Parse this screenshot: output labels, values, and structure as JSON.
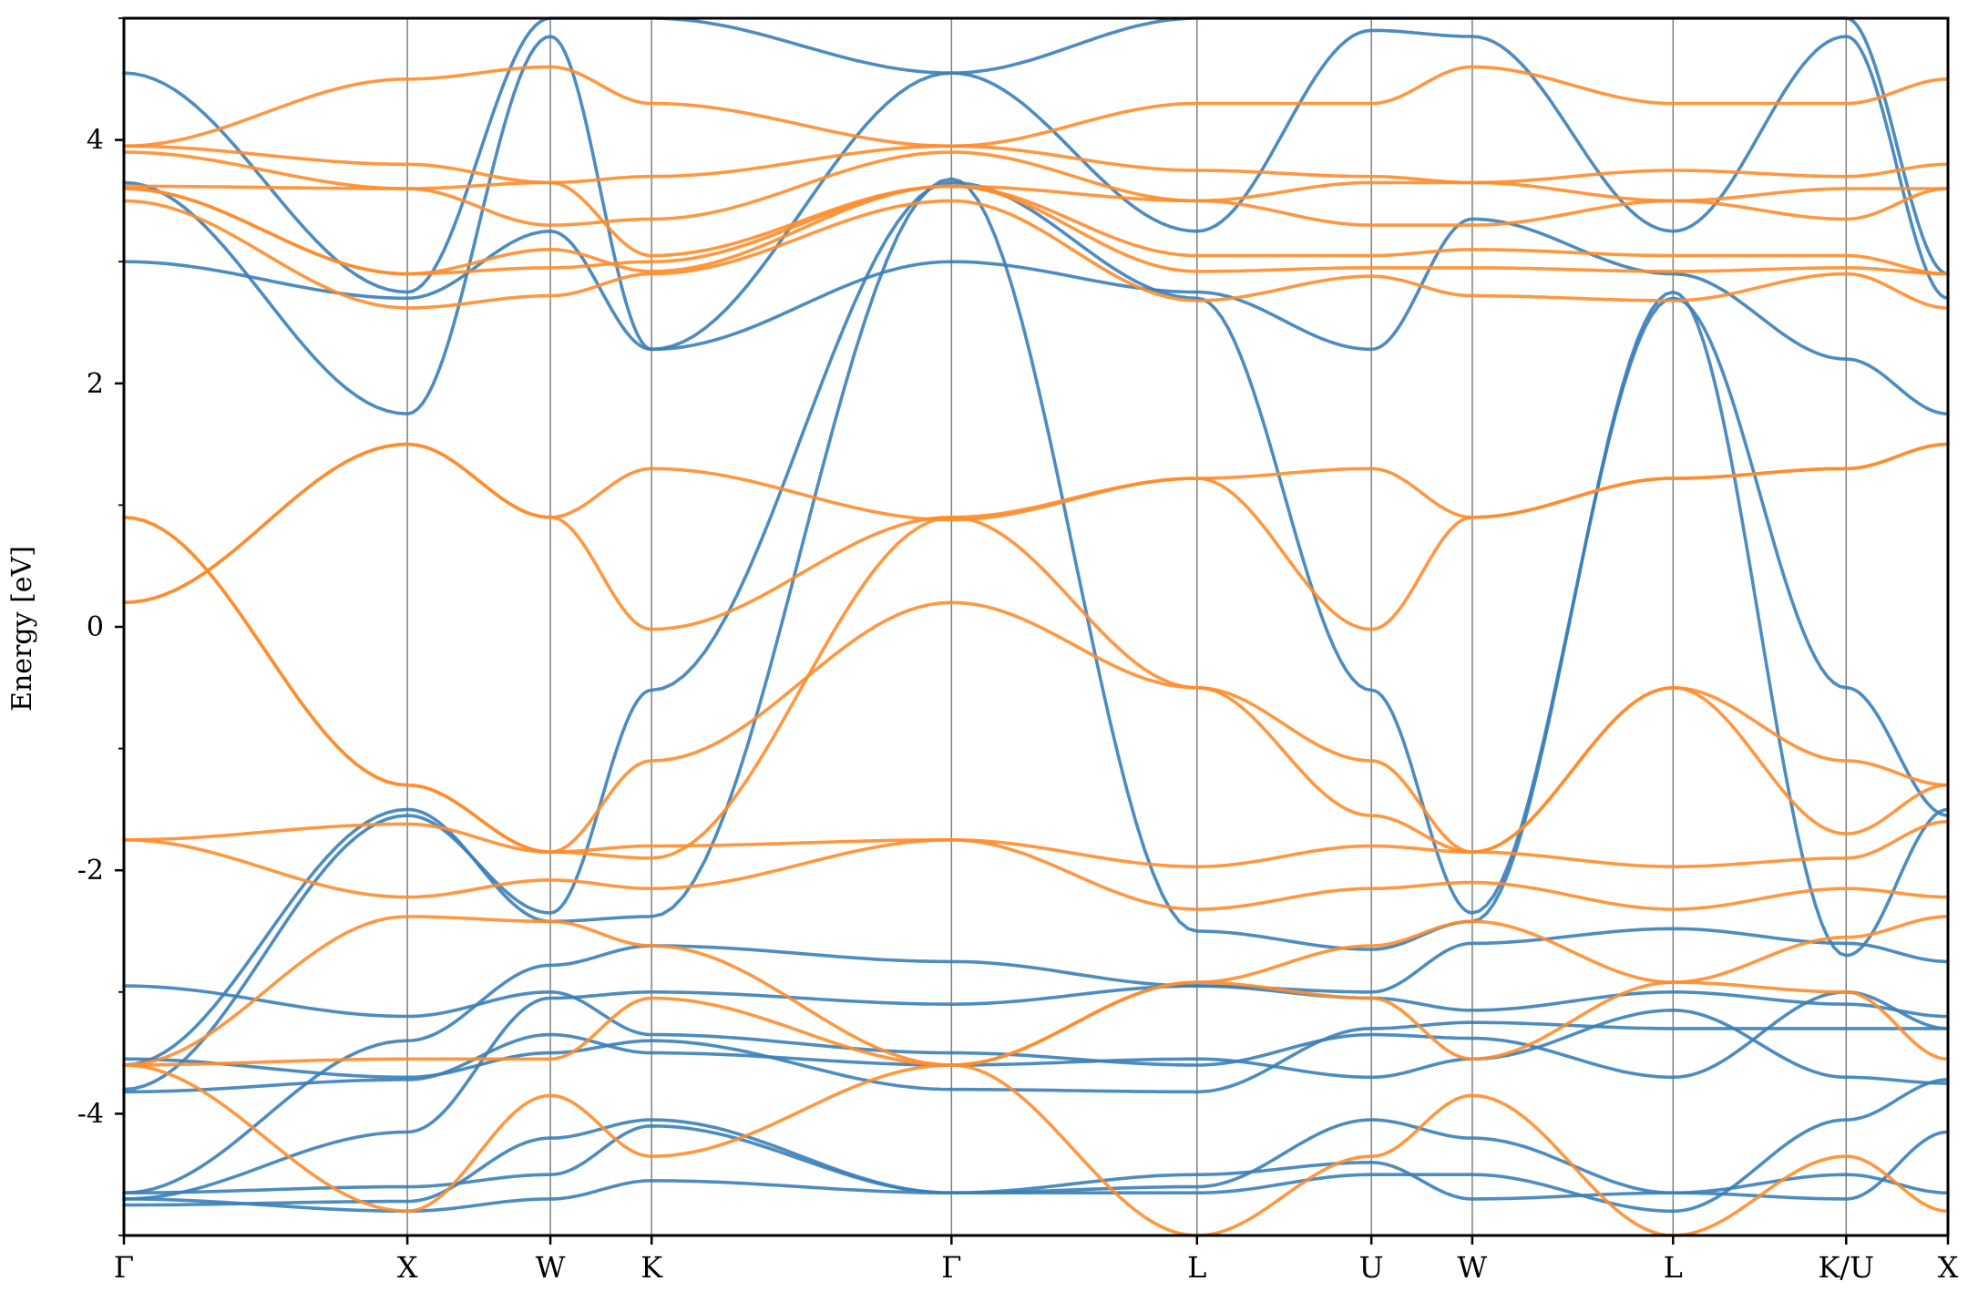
{
  "chart_data": {
    "type": "line",
    "ylabel": "Energy [eV]",
    "xlabel": "",
    "ylim": [
      -5,
      5
    ],
    "yticks": [
      -4,
      -2,
      0,
      2,
      4
    ],
    "ytick_labels": [
      "-4",
      "-2",
      "0",
      "2",
      "4"
    ],
    "yminor_ticks": [
      -5,
      -3,
      -1,
      1,
      3,
      5
    ],
    "kpath_positions": [
      0,
      0.1554,
      0.2338,
      0.2893,
      0.4537,
      0.5883,
      0.6839,
      0.7392,
      0.8493,
      0.9442,
      1.0
    ],
    "kpath_labels": [
      "Γ",
      "X",
      "W",
      "K",
      "Γ",
      "L",
      "U",
      "W",
      "L",
      "K/U",
      "X"
    ],
    "colors": {
      "series_a": "#3a80b8",
      "series_b": "#ff8c2a",
      "vline": "#808080"
    },
    "grid": false,
    "legend": "none",
    "series": [
      {
        "color": "#3a80b8",
        "bands": [
          [
            -4.65,
            -3.4,
            -2.78,
            -2.62,
            -2.75,
            -2.95,
            -3.0,
            -2.6,
            -2.48,
            -2.6,
            -2.75
          ],
          [
            -4.7,
            -4.15,
            -3.05,
            -3.0,
            -3.1,
            -2.95,
            -3.05,
            -3.15,
            -3.0,
            -3.1,
            -3.2
          ],
          [
            -3.82,
            -3.72,
            -3.35,
            -3.5,
            -3.6,
            -3.55,
            -3.7,
            -3.55,
            -3.15,
            -3.7,
            -3.75
          ],
          [
            -3.55,
            -3.7,
            -3.5,
            -3.4,
            -3.8,
            -3.82,
            -3.3,
            -3.25,
            -3.3,
            -3.3,
            -3.3
          ],
          [
            -2.95,
            -3.2,
            -3.0,
            -3.35,
            -3.5,
            -3.6,
            -3.35,
            -3.38,
            -3.7,
            -3.0,
            -3.3
          ],
          [
            -4.7,
            -4.8,
            -4.7,
            -4.55,
            -4.65,
            -4.5,
            -4.4,
            -4.7,
            -4.65,
            -4.5,
            -4.65
          ],
          [
            -4.75,
            -4.72,
            -4.2,
            -4.05,
            -4.65,
            -4.65,
            -4.5,
            -4.5,
            -4.8,
            -4.05,
            -3.72
          ],
          [
            -4.65,
            -4.6,
            -4.5,
            -4.1,
            -4.65,
            -4.6,
            -4.05,
            -4.2,
            -4.65,
            -4.7,
            -4.15
          ],
          [
            -3.8,
            -1.55,
            -2.35,
            -0.52,
            3.65,
            2.7,
            -0.52,
            -2.35,
            2.7,
            -0.5,
            -1.55
          ],
          [
            -3.6,
            -1.5,
            -2.42,
            -2.38,
            3.68,
            -2.5,
            -2.65,
            -2.42,
            2.75,
            -2.7,
            -1.5
          ],
          [
            3.0,
            2.7,
            3.25,
            2.28,
            3.0,
            2.75,
            2.28,
            3.35,
            2.9,
            2.2,
            1.75
          ],
          [
            3.65,
            1.75,
            4.85,
            2.28,
            4.55,
            3.25,
            4.9,
            4.85,
            3.25,
            4.85,
            2.7
          ],
          [
            4.55,
            2.75,
            5.0,
            5.0,
            4.55,
            5.0,
            5.0,
            5.0,
            5.0,
            5.0,
            2.9
          ]
        ]
      },
      {
        "color": "#ff8c2a",
        "bands": [
          [
            0.9,
            -1.3,
            -1.85,
            -1.1,
            0.2,
            -0.5,
            -1.1,
            -1.85,
            -0.5,
            -1.1,
            -1.3
          ],
          [
            0.9,
            -1.3,
            -1.85,
            -1.9,
            0.9,
            -0.5,
            -1.55,
            -1.85,
            -0.5,
            -1.7,
            -1.3
          ],
          [
            0.2,
            1.5,
            0.9,
            -0.02,
            0.9,
            1.22,
            -0.02,
            0.9,
            1.22,
            1.3,
            1.5
          ],
          [
            0.2,
            1.5,
            0.9,
            1.3,
            0.88,
            1.22,
            1.3,
            0.9,
            1.22,
            1.3,
            1.5
          ],
          [
            -1.75,
            -1.62,
            -1.85,
            -1.8,
            -1.75,
            -1.97,
            -1.8,
            -1.85,
            -1.97,
            -1.9,
            -1.6
          ],
          [
            -1.75,
            -2.22,
            -2.08,
            -2.15,
            -1.75,
            -2.32,
            -2.15,
            -2.1,
            -2.32,
            -2.15,
            -2.22
          ],
          [
            -3.6,
            -2.38,
            -2.42,
            -2.62,
            -3.6,
            -2.92,
            -2.62,
            -2.42,
            -2.92,
            -2.55,
            -2.38
          ],
          [
            -3.6,
            -3.55,
            -3.55,
            -3.05,
            -3.6,
            -2.92,
            -3.05,
            -3.55,
            -2.92,
            -3.0,
            -3.55
          ],
          [
            -3.6,
            -4.8,
            -3.85,
            -4.35,
            -3.6,
            -5.0,
            -4.35,
            -3.85,
            -5.0,
            -4.35,
            -4.8
          ],
          [
            3.5,
            2.62,
            2.72,
            2.9,
            3.5,
            2.68,
            2.88,
            2.72,
            2.68,
            2.9,
            2.62
          ],
          [
            3.6,
            2.9,
            2.95,
            3.0,
            3.62,
            2.92,
            2.95,
            2.95,
            2.92,
            2.95,
            2.9
          ],
          [
            3.6,
            2.9,
            3.1,
            2.92,
            3.62,
            3.05,
            3.05,
            3.1,
            3.05,
            3.05,
            2.9
          ],
          [
            3.62,
            3.6,
            3.65,
            3.05,
            3.62,
            3.5,
            3.65,
            3.65,
            3.5,
            3.6,
            3.6
          ],
          [
            3.9,
            3.6,
            3.3,
            3.35,
            3.9,
            3.5,
            3.3,
            3.3,
            3.5,
            3.35,
            3.6
          ],
          [
            3.95,
            3.8,
            3.65,
            3.7,
            3.95,
            3.75,
            3.7,
            3.65,
            3.75,
            3.7,
            3.8
          ],
          [
            3.95,
            4.5,
            4.6,
            4.3,
            3.95,
            4.3,
            4.3,
            4.6,
            4.3,
            4.3,
            4.5
          ]
        ]
      }
    ]
  }
}
